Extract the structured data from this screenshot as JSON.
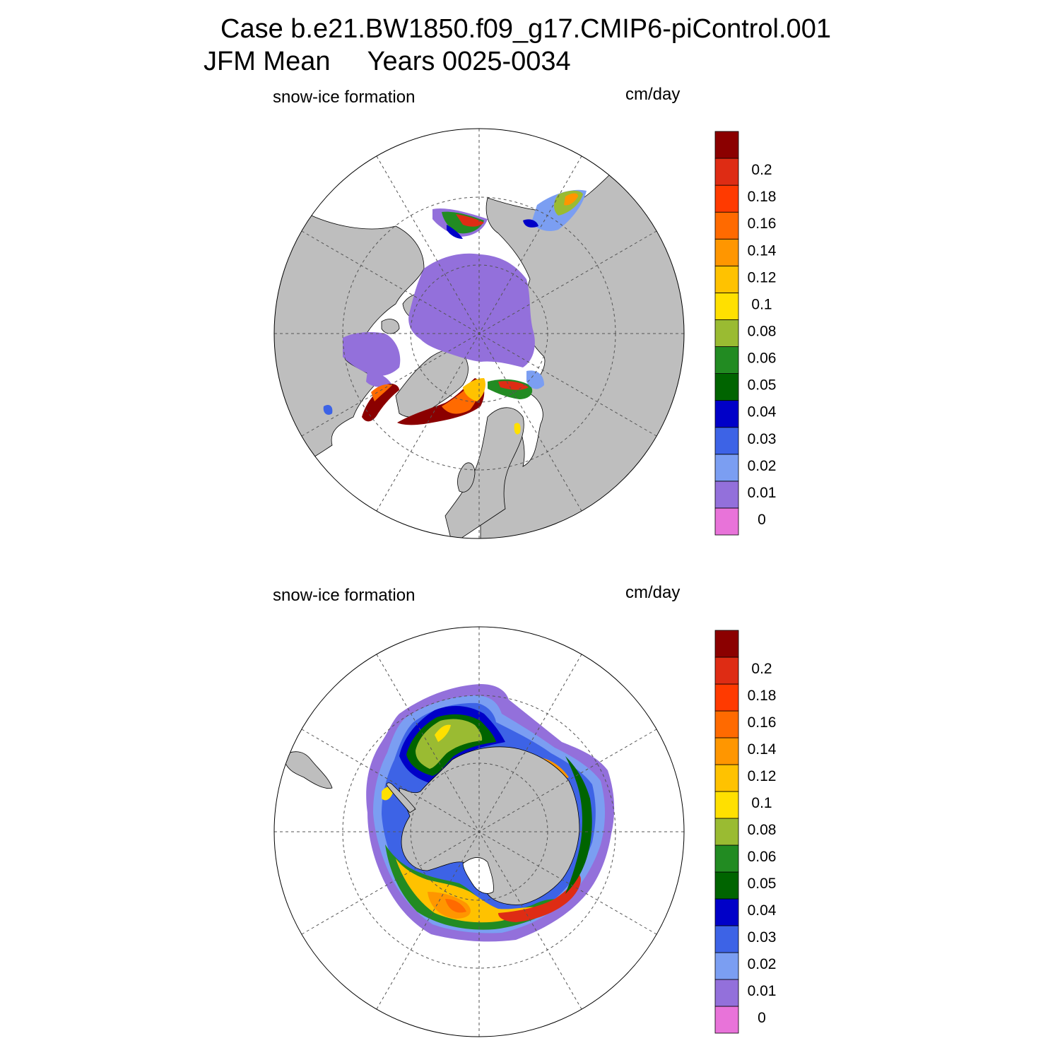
{
  "title": {
    "line1": "Case b.e21.BW1850.f09_g17.CMIP6-piControl.001",
    "season": "JFM Mean",
    "years": "Years 0025-0034"
  },
  "panels": [
    {
      "id": "north",
      "hemisphere": "Northern Hemisphere (Arctic)",
      "variable_label": "snow-ice formation",
      "units": "cm/day"
    },
    {
      "id": "south",
      "hemisphere": "Southern Hemisphere (Antarctic)",
      "variable_label": "snow-ice formation",
      "units": "cm/day"
    }
  ],
  "colorbar": {
    "levels": [
      "0",
      "0.01",
      "0.02",
      "0.03",
      "0.04",
      "0.05",
      "0.06",
      "0.08",
      "0.1",
      "0.12",
      "0.14",
      "0.16",
      "0.18",
      "0.2"
    ],
    "colors": [
      "#e873d9",
      "#9370db",
      "#7b9ef2",
      "#3d63e6",
      "#0000c8",
      "#006400",
      "#228b22",
      "#9abb32",
      "#ffe000",
      "#ffc200",
      "#ff9600",
      "#ff6a00",
      "#ff3a00",
      "#de2c14",
      "#8b0000"
    ]
  },
  "colors": {
    "land": "#bebebe",
    "ocean": "#ffffff",
    "coast": "#000000",
    "grid": "#555555"
  }
}
